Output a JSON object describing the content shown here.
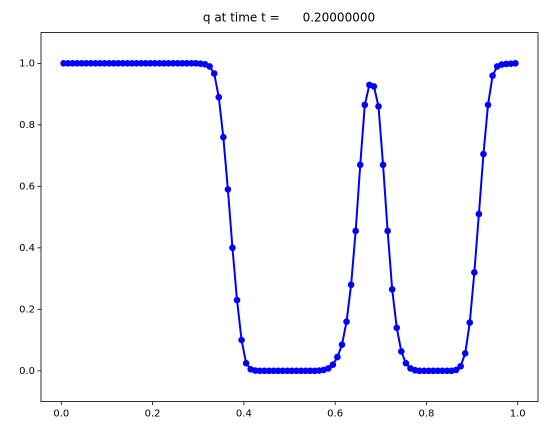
{
  "chart_data": {
    "type": "line",
    "title": "q at time t =      0.20000000",
    "x": [
      0.005,
      0.015,
      0.025,
      0.035,
      0.045,
      0.055,
      0.065,
      0.075,
      0.085,
      0.095,
      0.105,
      0.115,
      0.125,
      0.135,
      0.145,
      0.155,
      0.165,
      0.175,
      0.185,
      0.195,
      0.205,
      0.215,
      0.225,
      0.235,
      0.245,
      0.255,
      0.265,
      0.275,
      0.285,
      0.295,
      0.305,
      0.315,
      0.325,
      0.335,
      0.345,
      0.355,
      0.365,
      0.375,
      0.385,
      0.395,
      0.405,
      0.415,
      0.425,
      0.435,
      0.445,
      0.455,
      0.465,
      0.475,
      0.485,
      0.495,
      0.505,
      0.515,
      0.525,
      0.535,
      0.545,
      0.555,
      0.565,
      0.575,
      0.585,
      0.595,
      0.605,
      0.615,
      0.625,
      0.635,
      0.645,
      0.655,
      0.665,
      0.675,
      0.685,
      0.695,
      0.705,
      0.715,
      0.725,
      0.735,
      0.745,
      0.755,
      0.765,
      0.775,
      0.785,
      0.795,
      0.805,
      0.815,
      0.825,
      0.835,
      0.845,
      0.855,
      0.865,
      0.875,
      0.885,
      0.895,
      0.905,
      0.915,
      0.925,
      0.935,
      0.945,
      0.955,
      0.965,
      0.975,
      0.985,
      0.995
    ],
    "series": [
      {
        "color": "#0000ff",
        "values": [
          1,
          1,
          1,
          1,
          1,
          1,
          1,
          1,
          1,
          1,
          1,
          1,
          1,
          1,
          1,
          1,
          1,
          1,
          1,
          1,
          1,
          1,
          1,
          1,
          1,
          1,
          1,
          1,
          1,
          1,
          0.999,
          0.997,
          0.99,
          0.967,
          0.89,
          0.76,
          0.59,
          0.4,
          0.23,
          0.1,
          0.025,
          0.005,
          0.001,
          0,
          0,
          0,
          0,
          0,
          0,
          0,
          0,
          0,
          0,
          0,
          0,
          0,
          0.001,
          0.003,
          0.008,
          0.02,
          0.045,
          0.085,
          0.16,
          0.28,
          0.455,
          0.67,
          0.865,
          0.93,
          0.925,
          0.86,
          0.67,
          0.455,
          0.265,
          0.14,
          0.063,
          0.025,
          0.008,
          0.002,
          0,
          0,
          0,
          0,
          0,
          0,
          0,
          0,
          0.003,
          0.015,
          0.057,
          0.157,
          0.32,
          0.51,
          0.705,
          0.865,
          0.96,
          0.99,
          0.996,
          0.998,
          0.999,
          1.0
        ]
      }
    ],
    "xlim": [
      -0.0445,
      1.0445
    ],
    "ylim": [
      -0.1,
      1.1
    ],
    "xticks": [
      {
        "value": 0,
        "label": "0.0"
      },
      0.2,
      0.4,
      0.6,
      0.8,
      {
        "value": 1,
        "label": "1.0"
      }
    ],
    "yticks": [
      {
        "value": 0,
        "label": "0.0"
      },
      0.2,
      0.4,
      0.6,
      0.8,
      {
        "value": 1,
        "label": "1.0"
      }
    ]
  }
}
